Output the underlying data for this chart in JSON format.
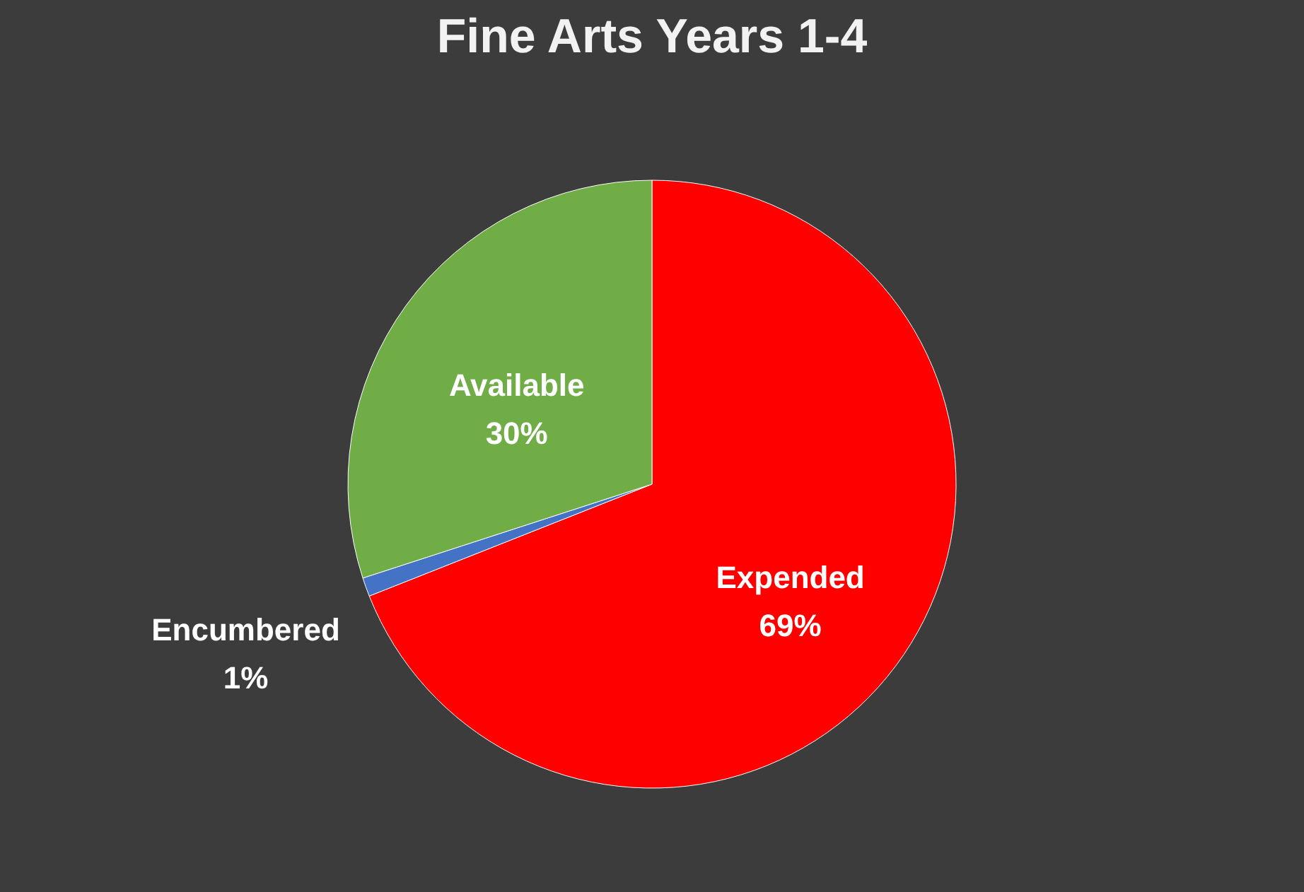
{
  "chart_data": {
    "type": "pie",
    "title": "Fine Arts Years 1-4",
    "categories": [
      "Expended",
      "Encumbered",
      "Available"
    ],
    "values": [
      69,
      1,
      30
    ],
    "colors": [
      "#ff0000",
      "#4472c4",
      "#70ad47"
    ],
    "value_labels": [
      "69%",
      "1%",
      "30%"
    ],
    "legend": false
  }
}
